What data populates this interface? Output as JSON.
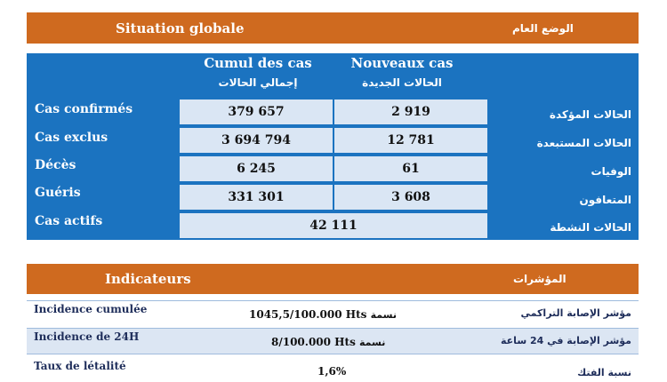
{
  "situation": {
    "title_fr": "Situation globale",
    "title_ar": "الوضع العام",
    "columns": [
      {
        "fr": "Cumul des cas",
        "ar": "إجمالي الحالات"
      },
      {
        "fr": "Nouveaux cas",
        "ar": "الحالات الجديدة"
      }
    ],
    "rows": [
      {
        "label_fr": "Cas confirmés",
        "label_ar": "الحالات المؤكدة",
        "cumul": "379 657",
        "new": "2 919"
      },
      {
        "label_fr": "Cas exclus",
        "label_ar": "الحالات المستبعدة",
        "cumul": "3 694 794",
        "new": "12 781"
      },
      {
        "label_fr": "Décès",
        "label_ar": "الوفيات",
        "cumul": "6 245",
        "new": "61"
      },
      {
        "label_fr": "Guéris",
        "label_ar": "المتعافون",
        "cumul": "331 301",
        "new": "3 608"
      },
      {
        "label_fr": "Cas actifs",
        "label_ar": "الحالات النشطة",
        "value": "42 111"
      }
    ]
  },
  "indicators": {
    "title_fr": "Indicateurs",
    "title_ar": "المؤشرات",
    "rows": [
      {
        "label_fr": "Incidence cumulée",
        "value": "1045,5/100.000 Hts",
        "value_ar": "نسمة",
        "label_ar": "مؤشر الإصابة التراكمي"
      },
      {
        "label_fr": "Incidence de 24H",
        "value": "8/100.000 Hts",
        "value_ar": "نسمة",
        "label_ar": "مؤشر الإصابة في 24 ساعة"
      },
      {
        "label_fr": "Taux de létalité",
        "value": "1,6%",
        "value_ar": "",
        "label_ar": "نسبة الفتك"
      }
    ]
  }
}
